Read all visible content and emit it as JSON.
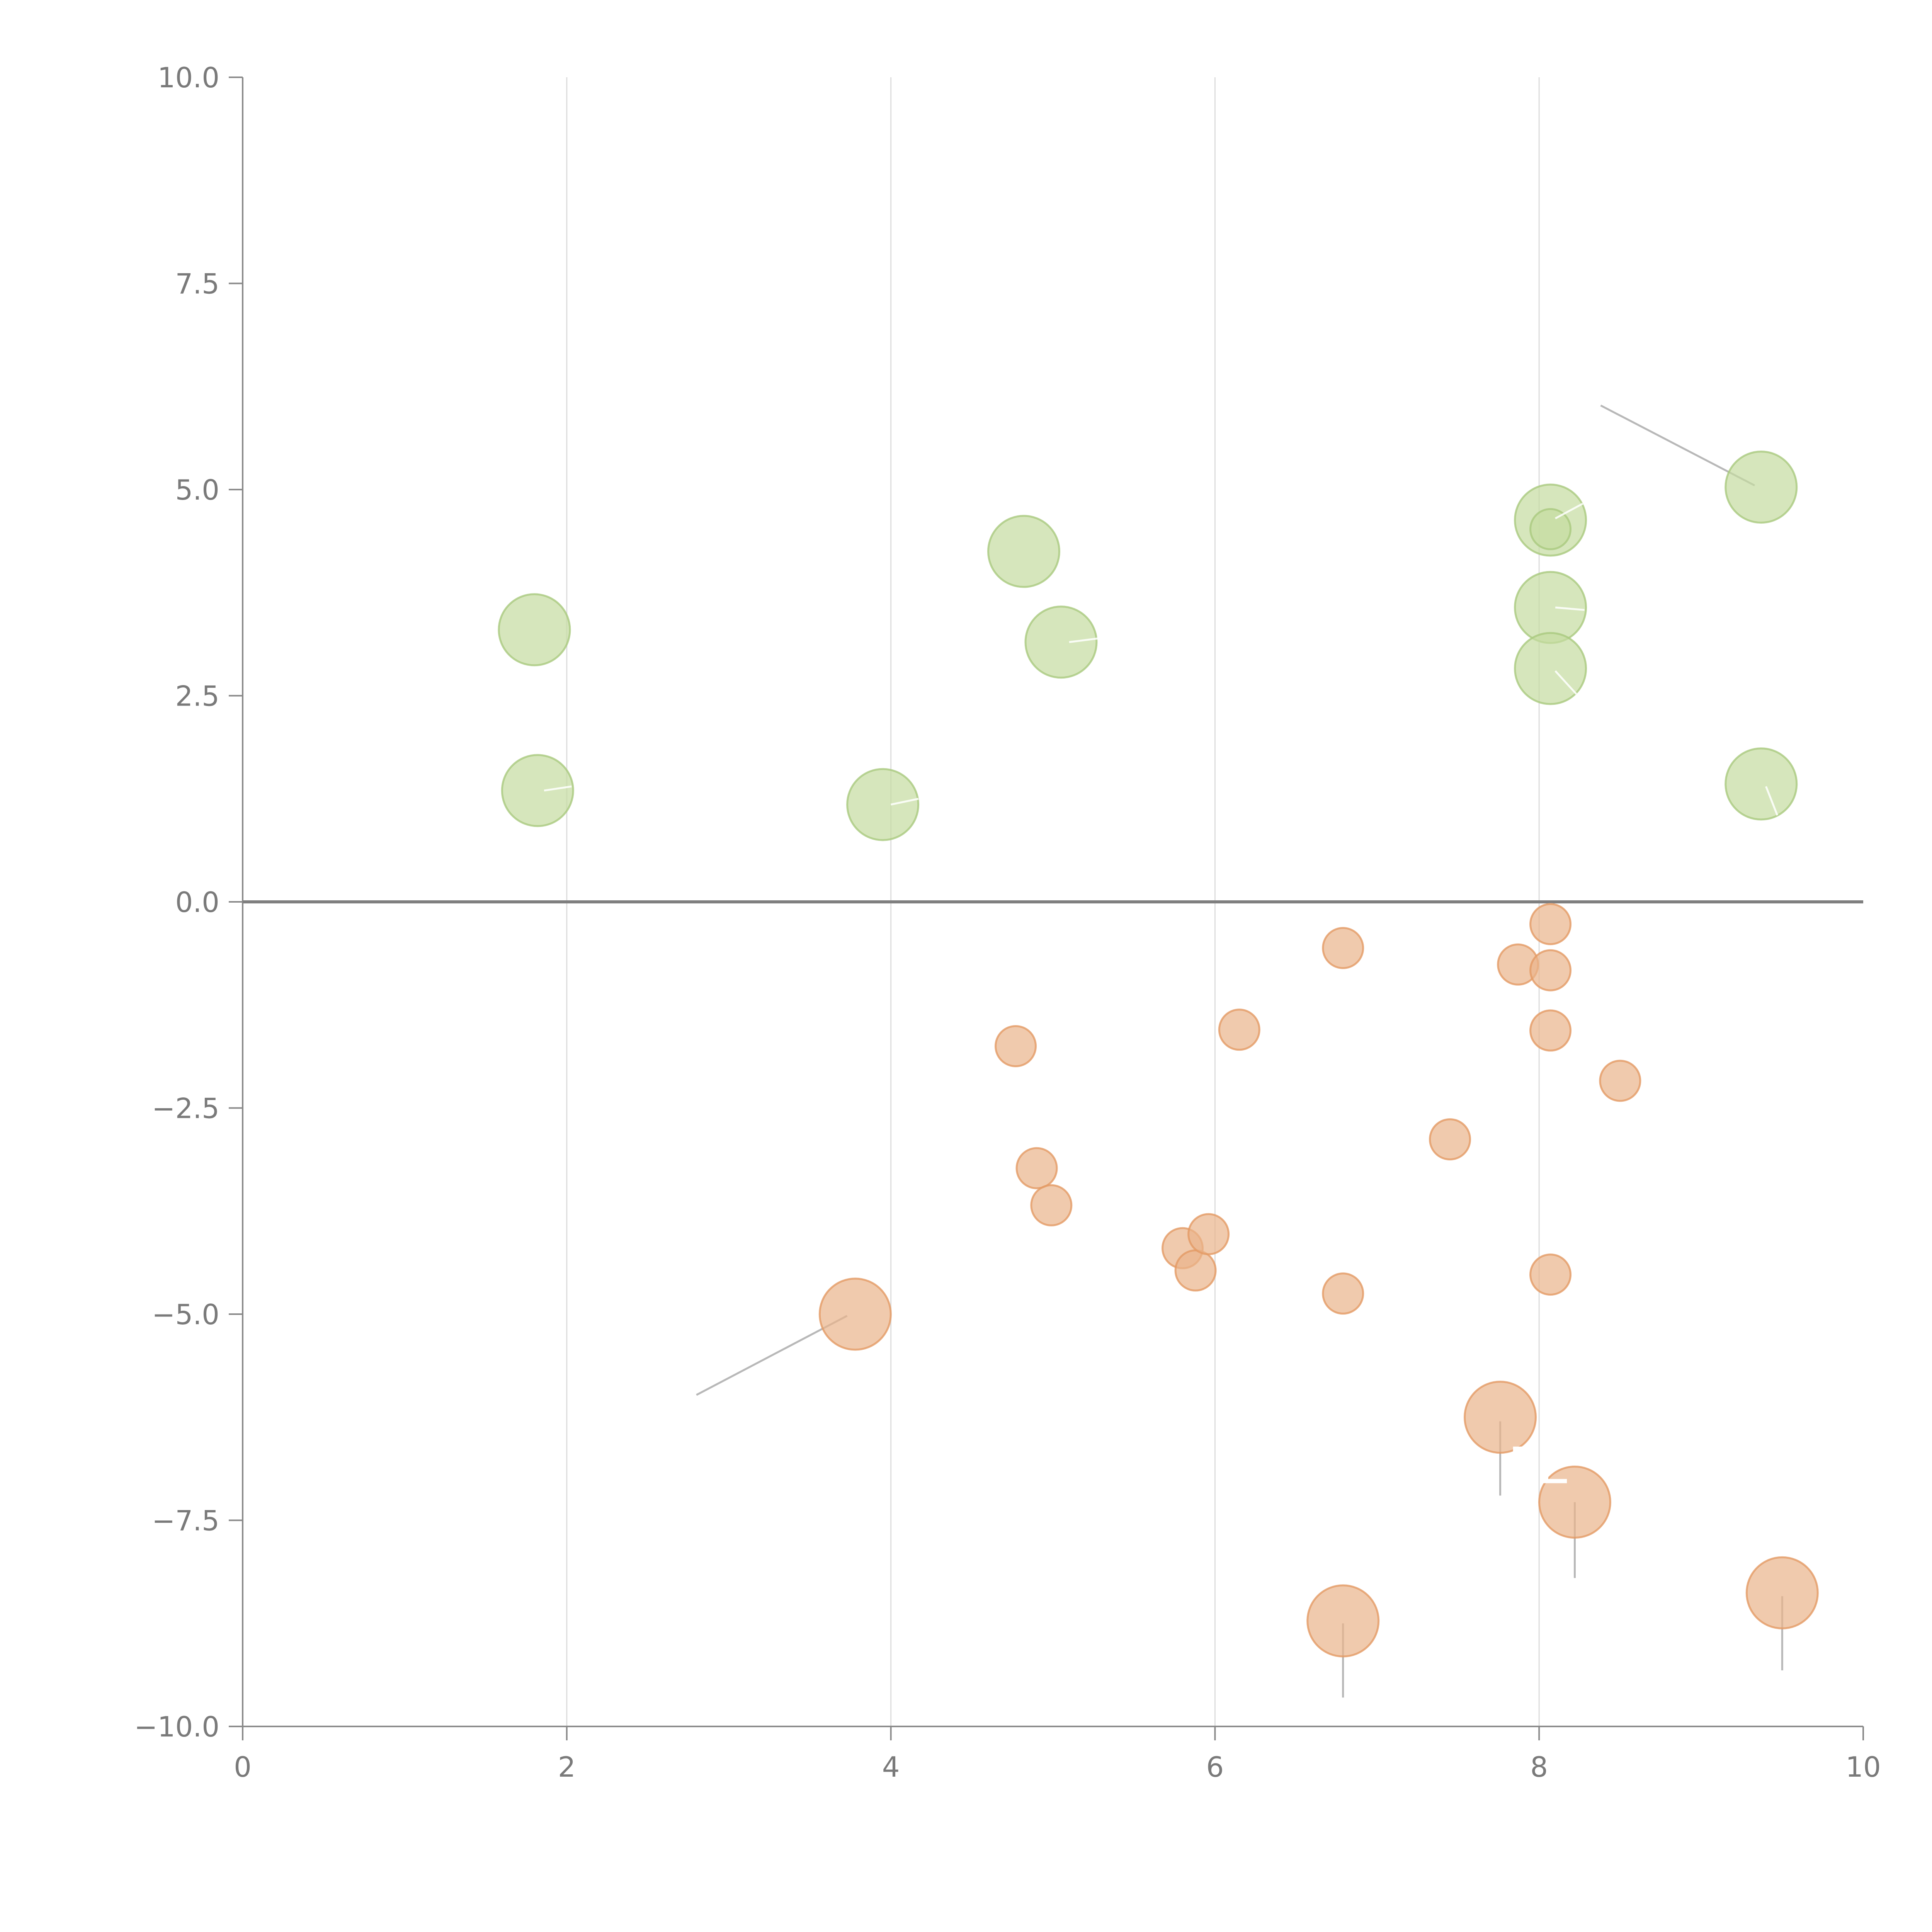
{
  "chart_data": {
    "type": "scatter",
    "title": "",
    "xlabel": "",
    "ylabel": "",
    "xlim": [
      0,
      10
    ],
    "ylim": [
      -10,
      10
    ],
    "x_ticks": [
      0,
      2,
      4,
      6,
      8,
      10
    ],
    "x_tick_labels": [
      "0",
      "2",
      "4",
      "6",
      "8",
      "10"
    ],
    "y_ticks": [
      10,
      7.5,
      5,
      2.5,
      0,
      -2.5,
      -5,
      -7.5,
      -10
    ],
    "y_tick_labels": [
      "10.0",
      "7.5",
      "5.0",
      "2.5",
      "0.0",
      "−2.5",
      "−5.0",
      "−7.5",
      "−10.0"
    ],
    "grid": {
      "vertical": true,
      "horizontal": false
    },
    "zero_line": true,
    "colors": {
      "positive_fill": "#c5dca0",
      "positive_stroke": "#a9c97e",
      "negative_fill": "#eab48a",
      "negative_stroke": "#e39a64"
    },
    "series": [
      {
        "color": "positive",
        "points": [
          {
            "x": 1.8,
            "y": 3.3,
            "size": 3
          },
          {
            "x": 1.82,
            "y": 1.35,
            "size": 3
          },
          {
            "x": 3.95,
            "y": 1.18,
            "size": 3
          },
          {
            "x": 4.82,
            "y": 4.25,
            "size": 3
          },
          {
            "x": 5.05,
            "y": 3.15,
            "size": 3
          },
          {
            "x": 8.07,
            "y": 4.63,
            "size": 3
          },
          {
            "x": 8.07,
            "y": 4.52,
            "size": 1
          },
          {
            "x": 8.07,
            "y": 3.57,
            "size": 3
          },
          {
            "x": 8.07,
            "y": 2.83,
            "size": 3
          },
          {
            "x": 9.37,
            "y": 5.03,
            "size": 3
          },
          {
            "x": 9.37,
            "y": 1.43,
            "size": 3
          }
        ]
      },
      {
        "color": "negative",
        "points": [
          {
            "x": 3.78,
            "y": -5.0,
            "size": 3
          },
          {
            "x": 4.77,
            "y": -1.75,
            "size": 1
          },
          {
            "x": 4.9,
            "y": -3.23,
            "size": 1
          },
          {
            "x": 4.99,
            "y": -3.68,
            "size": 1
          },
          {
            "x": 5.8,
            "y": -4.2,
            "size": 1
          },
          {
            "x": 5.88,
            "y": -4.47,
            "size": 1
          },
          {
            "x": 5.96,
            "y": -4.03,
            "size": 1
          },
          {
            "x": 6.15,
            "y": -1.55,
            "size": 1
          },
          {
            "x": 6.79,
            "y": -0.56,
            "size": 1
          },
          {
            "x": 6.79,
            "y": -4.75,
            "size": 1
          },
          {
            "x": 6.79,
            "y": -8.72,
            "size": 3
          },
          {
            "x": 7.45,
            "y": -2.88,
            "size": 1
          },
          {
            "x": 7.76,
            "y": -6.25,
            "size": 3
          },
          {
            "x": 7.87,
            "y": -0.76,
            "size": 1
          },
          {
            "x": 8.07,
            "y": -0.27,
            "size": 1
          },
          {
            "x": 8.07,
            "y": -0.83,
            "size": 1
          },
          {
            "x": 8.07,
            "y": -1.56,
            "size": 1
          },
          {
            "x": 8.07,
            "y": -4.52,
            "size": 1
          },
          {
            "x": 8.22,
            "y": -7.28,
            "size": 3
          },
          {
            "x": 8.5,
            "y": -2.17,
            "size": 1
          },
          {
            "x": 9.5,
            "y": -8.38,
            "size": 3
          }
        ]
      }
    ],
    "annotations": [
      {
        "text": "PE",
        "x": 8.0,
        "y": -7.05
      }
    ],
    "leader_lines": [
      {
        "style": "grey",
        "from": [
          9.33,
          5.05
        ],
        "to": [
          8.38,
          6.02
        ]
      },
      {
        "style": "grey",
        "from": [
          3.73,
          -5.02
        ],
        "to": [
          2.8,
          -5.98
        ]
      },
      {
        "style": "grey",
        "from": [
          7.76,
          -6.3
        ],
        "to": [
          7.76,
          -7.2
        ]
      },
      {
        "style": "grey",
        "from": [
          8.22,
          -7.28
        ],
        "to": [
          8.22,
          -8.2
        ]
      },
      {
        "style": "grey",
        "from": [
          6.79,
          -8.75
        ],
        "to": [
          6.79,
          -9.65
        ]
      },
      {
        "style": "grey",
        "from": [
          9.5,
          -8.42
        ],
        "to": [
          9.5,
          -9.32
        ]
      },
      {
        "style": "white",
        "from": [
          8.1,
          4.65
        ],
        "to": [
          8.27,
          4.83
        ]
      },
      {
        "style": "white",
        "from": [
          8.1,
          3.57
        ],
        "to": [
          8.28,
          3.54
        ]
      },
      {
        "style": "white",
        "from": [
          8.1,
          2.8
        ],
        "to": [
          8.23,
          2.52
        ]
      },
      {
        "style": "white",
        "from": [
          5.1,
          3.15
        ],
        "to": [
          5.3,
          3.2
        ]
      },
      {
        "style": "white",
        "from": [
          1.86,
          1.35
        ],
        "to": [
          2.03,
          1.4
        ]
      },
      {
        "style": "white",
        "from": [
          4.0,
          1.18
        ],
        "to": [
          4.17,
          1.25
        ]
      },
      {
        "style": "white",
        "from": [
          9.4,
          1.4
        ],
        "to": [
          9.47,
          1.05
        ]
      }
    ]
  }
}
